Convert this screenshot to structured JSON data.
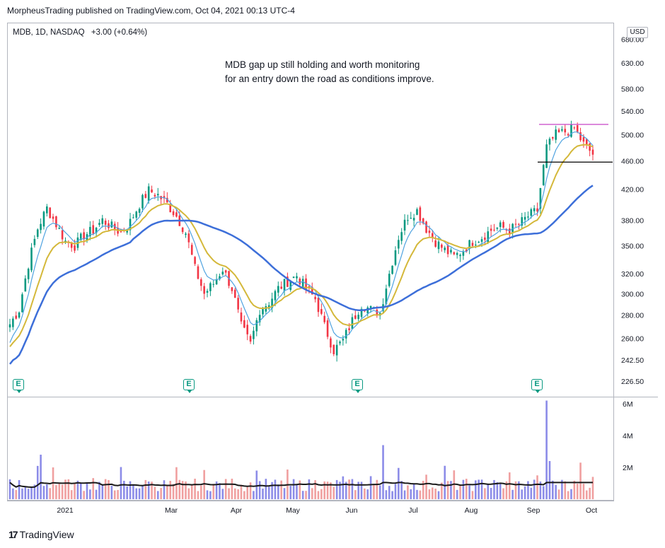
{
  "header": {
    "attribution": "MorpheusTrading published on TradingView.com, Oct 04, 2021 00:13 UTC-4"
  },
  "legend": {
    "symbol": "MDB, 1D, NASDAQ",
    "change": "+3.00 (+0.64%)"
  },
  "annotation": {
    "line1": "MDB gap up still holding and worth monitoring",
    "line2": "for an entry down the road as conditions improve."
  },
  "currency_badge": "USD",
  "footer": {
    "logo_text": "TradingView"
  },
  "earnings_marker": "E",
  "colors": {
    "up": "#089981",
    "down": "#f23645",
    "ema_short": "#4fa3e0",
    "ema_mid": "#d4b83a",
    "sma_long": "#3d6fd9",
    "resistance": "#cc55cc",
    "support": "#000000",
    "vol_up": "#8c8ce8",
    "vol_down": "#f0a0a0",
    "vol_avg": "#1a1a1a"
  },
  "chart_data": {
    "type": "candlestick",
    "symbol": "MDB",
    "interval": "1D",
    "exchange": "NASDAQ",
    "price_scale": "log",
    "price_ticks": [
      226.5,
      242.5,
      260,
      280,
      300,
      320,
      350,
      380,
      420,
      460,
      500,
      540,
      580,
      630,
      680
    ],
    "volume_ticks": [
      "2M",
      "4M",
      "6M"
    ],
    "x_ticks": [
      "2021",
      "Mar",
      "Apr",
      "May",
      "Jun",
      "Jul",
      "Aug",
      "Sep",
      "Oct"
    ],
    "earnings_months": [
      "Dec",
      "Mar",
      "Jun",
      "Sep"
    ],
    "resistance_level": 517,
    "support_level": 458,
    "weekly_close": [
      272,
      285,
      330,
      370,
      395,
      375,
      355,
      350,
      362,
      368,
      380,
      372,
      365,
      378,
      400,
      418,
      412,
      400,
      385,
      365,
      325,
      300,
      310,
      325,
      305,
      270,
      255,
      285,
      292,
      305,
      312,
      318,
      305,
      295,
      270,
      250,
      258,
      275,
      290,
      285,
      282,
      320,
      360,
      385,
      392,
      370,
      355,
      345,
      338,
      345,
      355,
      360,
      368,
      372,
      368,
      375,
      385,
      392,
      480,
      500,
      505,
      510,
      485,
      470
    ],
    "series": [
      {
        "name": "EMA short"
      },
      {
        "name": "EMA mid"
      },
      {
        "name": "SMA long"
      }
    ]
  }
}
